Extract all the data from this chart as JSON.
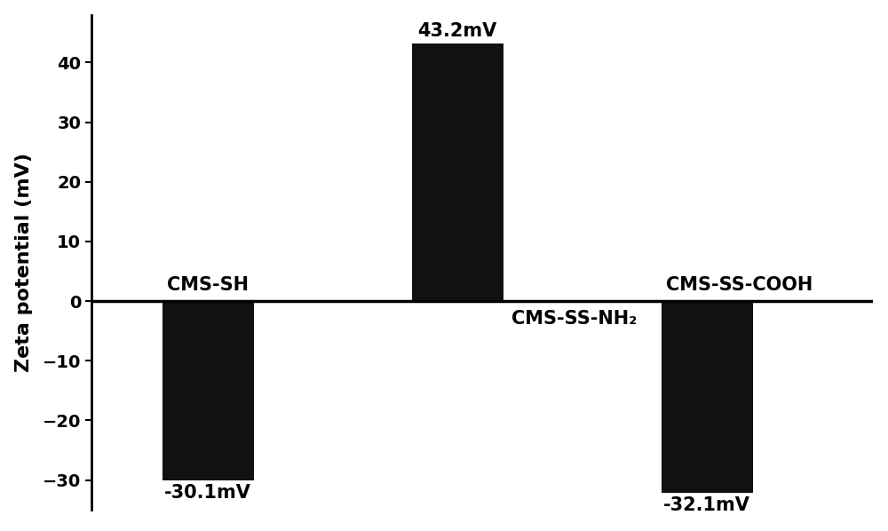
{
  "categories": [
    "CMS-SH",
    "CMS-SS-NH₂",
    "CMS-SS-COOH"
  ],
  "values": [
    -30.1,
    43.2,
    -32.1
  ],
  "bar_color": "#111111",
  "bar_width": 0.55,
  "bar_positions": [
    1.0,
    2.5,
    4.0
  ],
  "ylabel": "Zeta potential (mV)",
  "ylim": [
    -35,
    48
  ],
  "yticks": [
    -30,
    -20,
    -10,
    0,
    10,
    20,
    30,
    40
  ],
  "xlim": [
    0.3,
    5.0
  ],
  "background_color": "#ffffff",
  "label_fontsize": 15,
  "tick_fontsize": 14,
  "ylabel_fontsize": 16,
  "annotation_fontsize": 15,
  "value_labels": [
    "-30.1mV",
    "43.2mV",
    "-32.1mV"
  ]
}
